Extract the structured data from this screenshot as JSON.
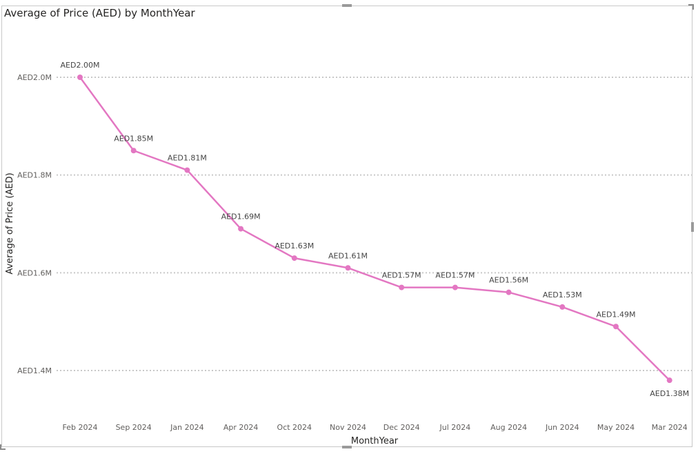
{
  "chart_data": {
    "type": "line",
    "title": "Average of Price (AED) by MonthYear",
    "xlabel": "MonthYear",
    "ylabel": "Average of Price (AED)",
    "categories": [
      "Feb 2024",
      "Sep 2024",
      "Jan 2024",
      "Apr 2024",
      "Oct 2024",
      "Nov 2024",
      "Dec 2024",
      "Jul 2024",
      "Aug 2024",
      "Jun 2024",
      "May 2024",
      "Mar 2024"
    ],
    "series": [
      {
        "values": [
          2.0,
          1.85,
          1.81,
          1.69,
          1.63,
          1.61,
          1.57,
          1.57,
          1.56,
          1.53,
          1.49,
          1.38
        ],
        "data_labels": [
          "AED2.00M",
          "AED1.85M",
          "AED1.81M",
          "AED1.69M",
          "AED1.63M",
          "AED1.61M",
          "AED1.57M",
          "AED1.57M",
          "AED1.56M",
          "AED1.53M",
          "AED1.49M",
          "AED1.38M"
        ],
        "color": "#E377C2"
      }
    ],
    "value_unit": "AED millions",
    "yticks": [
      {
        "value": 1.4,
        "label": "AED1.4M"
      },
      {
        "value": 1.6,
        "label": "AED1.6M"
      },
      {
        "value": 1.8,
        "label": "AED1.8M"
      },
      {
        "value": 2.0,
        "label": "AED2.0M"
      }
    ],
    "ylim": [
      1.33,
      2.13
    ],
    "grid": "horizontal dotted",
    "legend": "none"
  }
}
